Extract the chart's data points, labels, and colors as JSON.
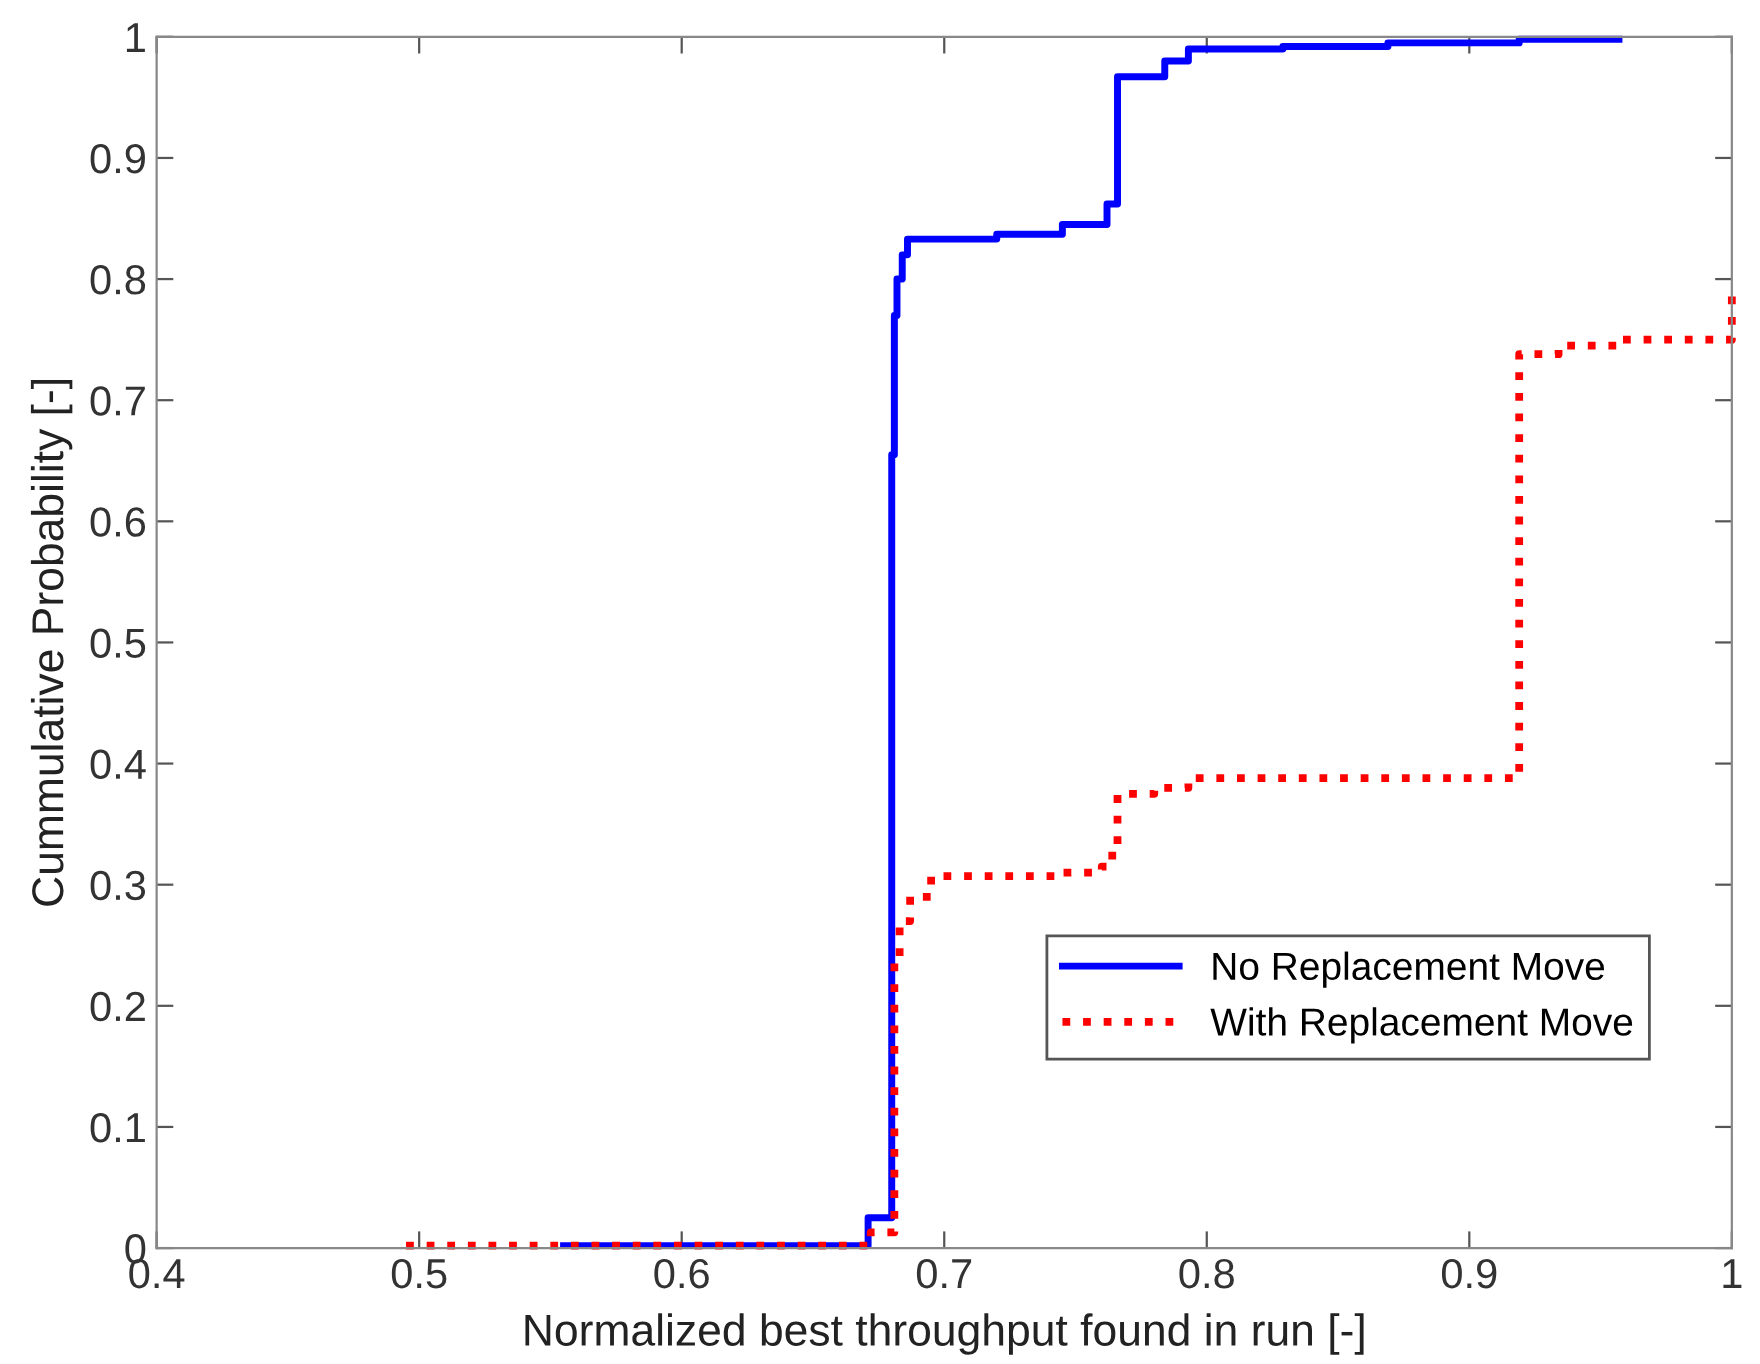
{
  "chart_data": {
    "type": "step",
    "xlabel": "Normalized best throughput found in run [-]",
    "ylabel": "Cummulative Probability [-]",
    "xlim": [
      0.4,
      1
    ],
    "ylim": [
      0,
      1
    ],
    "xticks": [
      0.4,
      0.5,
      0.6,
      0.7,
      0.8,
      0.9,
      1
    ],
    "yticks": [
      0,
      0.1,
      0.2,
      0.3,
      0.4,
      0.5,
      0.6,
      0.7,
      0.8,
      0.9,
      1
    ],
    "grid": false,
    "legend": "lower right",
    "marker": "none",
    "series": [
      {
        "name": "No Replacement Move",
        "color": "#0000ff",
        "line_style": "solid",
        "x": [
          0.555,
          0.671,
          0.68,
          0.681,
          0.682,
          0.684,
          0.686,
          0.69,
          0.72,
          0.745,
          0.762,
          0.766,
          0.784,
          0.793,
          0.829,
          0.869,
          0.919,
          0.957
        ],
        "values": [
          0.002,
          0.025,
          0.655,
          0.77,
          0.8,
          0.82,
          0.833,
          0.833,
          0.837,
          0.845,
          0.862,
          0.967,
          0.98,
          0.99,
          0.992,
          0.995,
          0.998,
          0.998
        ]
      },
      {
        "name": "With Replacement Move",
        "color": "#ff0000",
        "line_style": "dotted",
        "x": [
          0.495,
          0.672,
          0.681,
          0.683,
          0.687,
          0.695,
          0.743,
          0.76,
          0.764,
          0.766,
          0.78,
          0.793,
          0.919,
          0.934,
          0.957,
          1.0
        ],
        "values": [
          0.002,
          0.013,
          0.235,
          0.27,
          0.29,
          0.307,
          0.31,
          0.315,
          0.33,
          0.375,
          0.38,
          0.388,
          0.738,
          0.745,
          0.75,
          0.793
        ]
      }
    ]
  }
}
